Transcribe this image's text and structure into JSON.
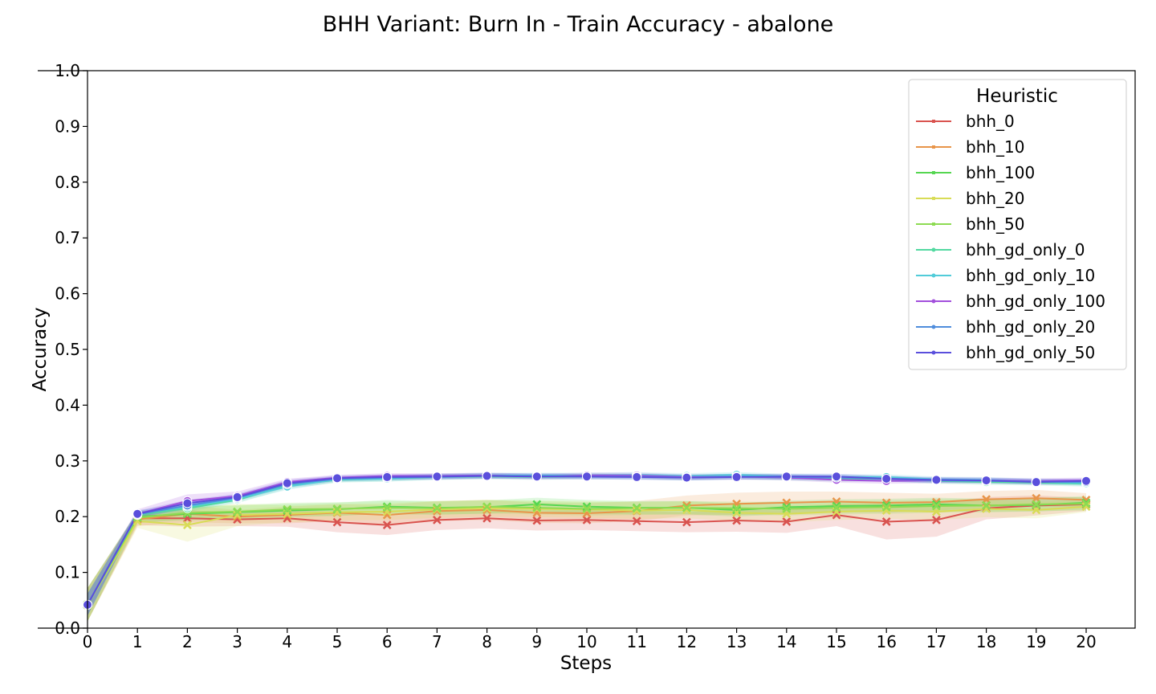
{
  "chart_data": {
    "type": "line",
    "title": "BHH Variant: Burn In - Train Accuracy - abalone",
    "xlabel": "Steps",
    "ylabel": "Accuracy",
    "xlim": [
      0,
      21
    ],
    "ylim": [
      0.0,
      1.0
    ],
    "x": [
      0,
      1,
      2,
      3,
      4,
      5,
      6,
      7,
      8,
      9,
      10,
      11,
      12,
      13,
      14,
      15,
      16,
      17,
      18,
      19,
      20
    ],
    "x_ticks": [
      "0",
      "1",
      "2",
      "3",
      "4",
      "5",
      "6",
      "7",
      "8",
      "9",
      "10",
      "11",
      "12",
      "13",
      "14",
      "15",
      "16",
      "17",
      "18",
      "19",
      "20"
    ],
    "y_ticks": [
      "0.0",
      "0.1",
      "0.2",
      "0.3",
      "0.4",
      "0.5",
      "0.6",
      "0.7",
      "0.8",
      "0.9",
      "1.0"
    ],
    "y_tick_values": [
      0.0,
      0.1,
      0.2,
      0.3,
      0.4,
      0.5,
      0.6,
      0.7,
      0.8,
      0.9,
      1.0
    ],
    "grid": false,
    "legend": {
      "title": "Heuristic",
      "position": "top-right"
    },
    "series": [
      {
        "name": "bhh_0",
        "color": "#d9534f",
        "marker": "x",
        "values": [
          0.042,
          0.197,
          0.197,
          0.195,
          0.197,
          0.19,
          0.185,
          0.194,
          0.197,
          0.193,
          0.194,
          0.192,
          0.19,
          0.193,
          0.191,
          0.203,
          0.191,
          0.194,
          0.215,
          0.22,
          0.222
        ],
        "band": [
          0.03,
          0.012,
          0.015,
          0.012,
          0.015,
          0.018,
          0.018,
          0.018,
          0.018,
          0.018,
          0.018,
          0.018,
          0.018,
          0.02,
          0.02,
          0.02,
          0.032,
          0.03,
          0.02,
          0.018,
          0.012
        ]
      },
      {
        "name": "bhh_10",
        "color": "#e8954a",
        "marker": "x",
        "values": [
          0.042,
          0.195,
          0.205,
          0.2,
          0.203,
          0.207,
          0.203,
          0.21,
          0.212,
          0.207,
          0.206,
          0.21,
          0.22,
          0.223,
          0.225,
          0.227,
          0.225,
          0.226,
          0.231,
          0.233,
          0.23
        ],
        "band": [
          0.03,
          0.012,
          0.015,
          0.012,
          0.015,
          0.015,
          0.018,
          0.018,
          0.018,
          0.018,
          0.018,
          0.018,
          0.018,
          0.02,
          0.02,
          0.018,
          0.018,
          0.015,
          0.015,
          0.015,
          0.012
        ]
      },
      {
        "name": "bhh_100",
        "color": "#55d651",
        "marker": "x",
        "values": [
          0.042,
          0.2,
          0.205,
          0.208,
          0.211,
          0.213,
          0.218,
          0.216,
          0.217,
          0.222,
          0.218,
          0.216,
          0.216,
          0.212,
          0.217,
          0.219,
          0.22,
          0.222,
          0.22,
          0.221,
          0.225
        ],
        "band": [
          0.03,
          0.01,
          0.012,
          0.012,
          0.012,
          0.012,
          0.012,
          0.012,
          0.012,
          0.012,
          0.012,
          0.012,
          0.012,
          0.012,
          0.012,
          0.012,
          0.012,
          0.012,
          0.012,
          0.012,
          0.012
        ]
      },
      {
        "name": "bhh_20",
        "color": "#d8dc56",
        "marker": "x",
        "values": [
          0.042,
          0.192,
          0.185,
          0.203,
          0.205,
          0.208,
          0.209,
          0.213,
          0.215,
          0.214,
          0.213,
          0.211,
          0.212,
          0.207,
          0.205,
          0.209,
          0.211,
          0.209,
          0.214,
          0.212,
          0.218
        ],
        "band": [
          0.03,
          0.012,
          0.03,
          0.02,
          0.015,
          0.015,
          0.015,
          0.015,
          0.015,
          0.015,
          0.015,
          0.015,
          0.015,
          0.015,
          0.015,
          0.015,
          0.015,
          0.015,
          0.015,
          0.015,
          0.01
        ]
      },
      {
        "name": "bhh_50",
        "color": "#8ddb52",
        "marker": "x",
        "values": [
          0.042,
          0.198,
          0.207,
          0.209,
          0.213,
          0.214,
          0.216,
          0.215,
          0.218,
          0.216,
          0.214,
          0.215,
          0.216,
          0.215,
          0.214,
          0.216,
          0.217,
          0.219,
          0.22,
          0.222,
          0.223
        ],
        "band": [
          0.03,
          0.01,
          0.012,
          0.012,
          0.012,
          0.012,
          0.012,
          0.012,
          0.012,
          0.012,
          0.012,
          0.012,
          0.012,
          0.012,
          0.012,
          0.012,
          0.012,
          0.012,
          0.012,
          0.012,
          0.012
        ]
      },
      {
        "name": "bhh_gd_only_0",
        "color": "#52d9a0",
        "marker": "o",
        "values": [
          0.042,
          0.203,
          0.215,
          0.23,
          0.256,
          0.266,
          0.268,
          0.271,
          0.272,
          0.271,
          0.272,
          0.272,
          0.27,
          0.272,
          0.27,
          0.268,
          0.268,
          0.264,
          0.262,
          0.261,
          0.259
        ],
        "band": [
          0.02,
          0.006,
          0.006,
          0.006,
          0.006,
          0.005,
          0.005,
          0.005,
          0.005,
          0.005,
          0.005,
          0.005,
          0.005,
          0.005,
          0.005,
          0.005,
          0.005,
          0.005,
          0.005,
          0.005,
          0.005
        ]
      },
      {
        "name": "bhh_gd_only_10",
        "color": "#52ccd9",
        "marker": "o",
        "values": [
          0.042,
          0.205,
          0.218,
          0.232,
          0.254,
          0.267,
          0.268,
          0.272,
          0.274,
          0.274,
          0.274,
          0.275,
          0.273,
          0.275,
          0.272,
          0.271,
          0.271,
          0.267,
          0.266,
          0.263,
          0.26
        ],
        "band": [
          0.02,
          0.006,
          0.006,
          0.006,
          0.006,
          0.005,
          0.005,
          0.005,
          0.005,
          0.005,
          0.005,
          0.005,
          0.005,
          0.005,
          0.005,
          0.005,
          0.005,
          0.005,
          0.005,
          0.005,
          0.005
        ]
      },
      {
        "name": "bhh_gd_only_100",
        "color": "#a24fdc",
        "marker": "o",
        "values": [
          0.042,
          0.205,
          0.228,
          0.237,
          0.262,
          0.27,
          0.273,
          0.273,
          0.274,
          0.272,
          0.274,
          0.274,
          0.271,
          0.272,
          0.27,
          0.266,
          0.264,
          0.265,
          0.265,
          0.264,
          0.265
        ],
        "band": [
          0.02,
          0.008,
          0.012,
          0.008,
          0.006,
          0.005,
          0.005,
          0.005,
          0.005,
          0.005,
          0.005,
          0.005,
          0.005,
          0.005,
          0.005,
          0.005,
          0.005,
          0.005,
          0.005,
          0.005,
          0.005
        ]
      },
      {
        "name": "bhh_gd_only_20",
        "color": "#4f8ddc",
        "marker": "o",
        "values": [
          0.042,
          0.204,
          0.22,
          0.234,
          0.258,
          0.268,
          0.27,
          0.271,
          0.273,
          0.273,
          0.272,
          0.272,
          0.27,
          0.272,
          0.271,
          0.27,
          0.268,
          0.265,
          0.264,
          0.263,
          0.262
        ],
        "band": [
          0.02,
          0.006,
          0.006,
          0.006,
          0.006,
          0.005,
          0.005,
          0.005,
          0.005,
          0.005,
          0.005,
          0.005,
          0.005,
          0.005,
          0.005,
          0.005,
          0.005,
          0.005,
          0.005,
          0.005,
          0.005
        ]
      },
      {
        "name": "bhh_gd_only_50",
        "color": "#5a4fdc",
        "marker": "o",
        "values": [
          0.042,
          0.205,
          0.224,
          0.235,
          0.26,
          0.269,
          0.271,
          0.272,
          0.273,
          0.272,
          0.272,
          0.271,
          0.27,
          0.271,
          0.272,
          0.272,
          0.268,
          0.266,
          0.265,
          0.262,
          0.264
        ],
        "band": [
          0.02,
          0.006,
          0.006,
          0.006,
          0.006,
          0.005,
          0.005,
          0.005,
          0.005,
          0.005,
          0.005,
          0.005,
          0.005,
          0.005,
          0.005,
          0.005,
          0.005,
          0.005,
          0.005,
          0.005,
          0.005
        ]
      }
    ]
  }
}
